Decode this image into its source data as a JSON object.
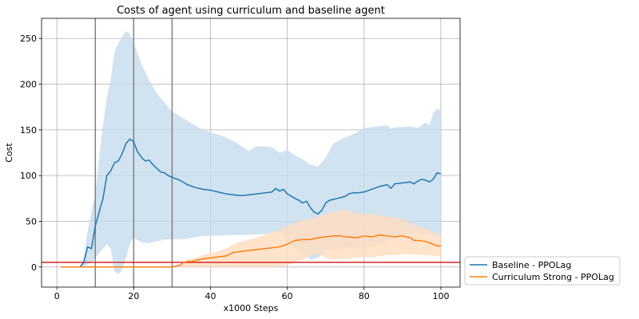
{
  "chart_data": {
    "type": "line",
    "title": "Costs of agent using curriculum and baseline agent",
    "xlabel": "x1000 Steps",
    "ylabel": "Cost",
    "xlim": [
      -4,
      105
    ],
    "ylim": [
      -22,
      272
    ],
    "xticks": [
      0,
      20,
      40,
      60,
      80,
      100
    ],
    "yticks": [
      0,
      50,
      100,
      150,
      200,
      250
    ],
    "grid": true,
    "legend_position": "outside-lower-right",
    "threshold": 5,
    "vlines": [
      10,
      20,
      30
    ],
    "series": [
      {
        "name": "Baseline - PPOLag",
        "color": "#1f77b4",
        "band_color": "#c6dcec",
        "points": [
          [
            1,
            0
          ],
          [
            6,
            0
          ],
          [
            7,
            5
          ],
          [
            8,
            22
          ],
          [
            9,
            20
          ],
          [
            10,
            45
          ],
          [
            11,
            60
          ],
          [
            12,
            75
          ],
          [
            13,
            100
          ],
          [
            14,
            105
          ],
          [
            15,
            114
          ],
          [
            16,
            116
          ],
          [
            17,
            124
          ],
          [
            18,
            135
          ],
          [
            19,
            140
          ],
          [
            20,
            137
          ],
          [
            21,
            126
          ],
          [
            22,
            120
          ],
          [
            23,
            116
          ],
          [
            24,
            117
          ],
          [
            25,
            112
          ],
          [
            26,
            108
          ],
          [
            27,
            104
          ],
          [
            28,
            103
          ],
          [
            29,
            100
          ],
          [
            30,
            98
          ],
          [
            32,
            95
          ],
          [
            34,
            90
          ],
          [
            36,
            87
          ],
          [
            38,
            85
          ],
          [
            40,
            84
          ],
          [
            42,
            82
          ],
          [
            44,
            80
          ],
          [
            46,
            79
          ],
          [
            48,
            78
          ],
          [
            50,
            79
          ],
          [
            52,
            80
          ],
          [
            54,
            81
          ],
          [
            56,
            82
          ],
          [
            57,
            86
          ],
          [
            58,
            83
          ],
          [
            59,
            85
          ],
          [
            60,
            80
          ],
          [
            62,
            75
          ],
          [
            63,
            73
          ],
          [
            64,
            70
          ],
          [
            65,
            72
          ],
          [
            66,
            65
          ],
          [
            67,
            60
          ],
          [
            68,
            58
          ],
          [
            69,
            62
          ],
          [
            70,
            70
          ],
          [
            71,
            73
          ],
          [
            72,
            74
          ],
          [
            73,
            75
          ],
          [
            74,
            76
          ],
          [
            75,
            77
          ],
          [
            76,
            80
          ],
          [
            77,
            81
          ],
          [
            78,
            81
          ],
          [
            80,
            82
          ],
          [
            82,
            85
          ],
          [
            84,
            88
          ],
          [
            86,
            90
          ],
          [
            87,
            86
          ],
          [
            88,
            91
          ],
          [
            90,
            92
          ],
          [
            92,
            93
          ],
          [
            93,
            91
          ],
          [
            94,
            94
          ],
          [
            95,
            96
          ],
          [
            96,
            95
          ],
          [
            97,
            93
          ],
          [
            98,
            96
          ],
          [
            99,
            103
          ],
          [
            100,
            102
          ]
        ],
        "upper": [
          [
            1,
            0
          ],
          [
            6,
            0
          ],
          [
            7,
            10
          ],
          [
            8,
            40
          ],
          [
            9,
            60
          ],
          [
            10,
            80
          ],
          [
            11,
            120
          ],
          [
            12,
            155
          ],
          [
            13,
            185
          ],
          [
            14,
            205
          ],
          [
            15,
            235
          ],
          [
            16,
            245
          ],
          [
            17,
            252
          ],
          [
            18,
            258
          ],
          [
            19,
            255
          ],
          [
            20,
            245
          ],
          [
            22,
            222
          ],
          [
            24,
            205
          ],
          [
            26,
            190
          ],
          [
            28,
            180
          ],
          [
            30,
            170
          ],
          [
            34,
            160
          ],
          [
            38,
            150
          ],
          [
            42,
            145
          ],
          [
            46,
            138
          ],
          [
            50,
            127
          ],
          [
            52,
            132
          ],
          [
            54,
            132
          ],
          [
            56,
            131
          ],
          [
            58,
            125
          ],
          [
            60,
            128
          ],
          [
            62,
            122
          ],
          [
            64,
            118
          ],
          [
            66,
            112
          ],
          [
            68,
            110
          ],
          [
            70,
            120
          ],
          [
            72,
            135
          ],
          [
            74,
            140
          ],
          [
            76,
            143
          ],
          [
            78,
            147
          ],
          [
            80,
            152
          ],
          [
            82,
            153
          ],
          [
            84,
            154
          ],
          [
            86,
            155
          ],
          [
            87,
            151
          ],
          [
            88,
            153
          ],
          [
            90,
            153
          ],
          [
            92,
            154
          ],
          [
            94,
            152
          ],
          [
            96,
            158
          ],
          [
            97,
            155
          ],
          [
            98,
            168
          ],
          [
            99,
            173
          ],
          [
            100,
            172
          ]
        ],
        "lower": [
          [
            1,
            0
          ],
          [
            6,
            0
          ],
          [
            7,
            0
          ],
          [
            8,
            3
          ],
          [
            9,
            5
          ],
          [
            10,
            10
          ],
          [
            11,
            15
          ],
          [
            12,
            20
          ],
          [
            13,
            25
          ],
          [
            14,
            20
          ],
          [
            15,
            -5
          ],
          [
            16,
            -8
          ],
          [
            17,
            -3
          ],
          [
            18,
            10
          ],
          [
            19,
            25
          ],
          [
            20,
            32
          ],
          [
            22,
            27
          ],
          [
            24,
            26
          ],
          [
            26,
            28
          ],
          [
            28,
            30
          ],
          [
            30,
            30
          ],
          [
            34,
            31
          ],
          [
            38,
            34
          ],
          [
            42,
            34
          ],
          [
            46,
            35
          ],
          [
            50,
            35
          ],
          [
            54,
            36
          ],
          [
            56,
            37
          ],
          [
            58,
            40
          ],
          [
            60,
            30
          ],
          [
            62,
            20
          ],
          [
            64,
            15
          ],
          [
            66,
            8
          ],
          [
            68,
            10
          ],
          [
            70,
            18
          ],
          [
            72,
            20
          ],
          [
            74,
            20
          ],
          [
            76,
            22
          ],
          [
            78,
            20
          ],
          [
            80,
            20
          ],
          [
            82,
            22
          ],
          [
            84,
            25
          ],
          [
            86,
            28
          ],
          [
            88,
            32
          ],
          [
            90,
            35
          ],
          [
            92,
            37
          ],
          [
            94,
            38
          ],
          [
            96,
            36
          ],
          [
            98,
            35
          ],
          [
            100,
            33
          ]
        ]
      },
      {
        "name": "Curriculum Strong - PPOLag",
        "color": "#ff7f0e",
        "band_color": "#ffdcbe",
        "points": [
          [
            1,
            0
          ],
          [
            25,
            0
          ],
          [
            30,
            0
          ],
          [
            31,
            1
          ],
          [
            32,
            2
          ],
          [
            33,
            5
          ],
          [
            34,
            6
          ],
          [
            35,
            6
          ],
          [
            36,
            7
          ],
          [
            38,
            9
          ],
          [
            40,
            10
          ],
          [
            42,
            11
          ],
          [
            44,
            12
          ],
          [
            45,
            14
          ],
          [
            46,
            16
          ],
          [
            48,
            17
          ],
          [
            50,
            18
          ],
          [
            52,
            19
          ],
          [
            54,
            20
          ],
          [
            56,
            21
          ],
          [
            58,
            22
          ],
          [
            60,
            25
          ],
          [
            62,
            29
          ],
          [
            64,
            30
          ],
          [
            66,
            30
          ],
          [
            68,
            32
          ],
          [
            70,
            33
          ],
          [
            72,
            34
          ],
          [
            74,
            34
          ],
          [
            75,
            33
          ],
          [
            76,
            33
          ],
          [
            78,
            32
          ],
          [
            80,
            34
          ],
          [
            82,
            33
          ],
          [
            84,
            35
          ],
          [
            86,
            34
          ],
          [
            88,
            33
          ],
          [
            90,
            34
          ],
          [
            92,
            32
          ],
          [
            93,
            29
          ],
          [
            94,
            29
          ],
          [
            96,
            28
          ],
          [
            98,
            25
          ],
          [
            99,
            23
          ],
          [
            100,
            23
          ]
        ],
        "upper": [
          [
            1,
            0
          ],
          [
            25,
            0
          ],
          [
            30,
            0
          ],
          [
            32,
            3
          ],
          [
            34,
            8
          ],
          [
            36,
            10
          ],
          [
            38,
            13
          ],
          [
            40,
            15
          ],
          [
            42,
            17
          ],
          [
            44,
            20
          ],
          [
            46,
            25
          ],
          [
            48,
            28
          ],
          [
            50,
            30
          ],
          [
            52,
            32
          ],
          [
            54,
            35
          ],
          [
            56,
            38
          ],
          [
            58,
            40
          ],
          [
            60,
            45
          ],
          [
            62,
            48
          ],
          [
            64,
            52
          ],
          [
            66,
            52
          ],
          [
            68,
            55
          ],
          [
            70,
            58
          ],
          [
            72,
            60
          ],
          [
            74,
            62
          ],
          [
            76,
            62
          ],
          [
            78,
            58
          ],
          [
            80,
            58
          ],
          [
            82,
            58
          ],
          [
            84,
            57
          ],
          [
            86,
            55
          ],
          [
            88,
            54
          ],
          [
            90,
            52
          ],
          [
            92,
            48
          ],
          [
            94,
            44
          ],
          [
            96,
            42
          ],
          [
            98,
            38
          ],
          [
            100,
            35
          ]
        ],
        "lower": [
          [
            1,
            0
          ],
          [
            25,
            0
          ],
          [
            30,
            0
          ],
          [
            32,
            0
          ],
          [
            34,
            0
          ],
          [
            36,
            0
          ],
          [
            40,
            0
          ],
          [
            44,
            0
          ],
          [
            46,
            0
          ],
          [
            48,
            0
          ],
          [
            50,
            0
          ],
          [
            52,
            0
          ],
          [
            54,
            0
          ],
          [
            56,
            0
          ],
          [
            58,
            0
          ],
          [
            60,
            2
          ],
          [
            62,
            5
          ],
          [
            64,
            8
          ],
          [
            66,
            12
          ],
          [
            68,
            15
          ],
          [
            70,
            10
          ],
          [
            72,
            8
          ],
          [
            74,
            9
          ],
          [
            76,
            9
          ],
          [
            78,
            10
          ],
          [
            80,
            11
          ],
          [
            82,
            10
          ],
          [
            84,
            12
          ],
          [
            86,
            13
          ],
          [
            88,
            13
          ],
          [
            90,
            14
          ],
          [
            92,
            14
          ],
          [
            94,
            13
          ],
          [
            96,
            13
          ],
          [
            98,
            12
          ],
          [
            100,
            12
          ]
        ]
      }
    ],
    "threshold_color": "#d62728",
    "vline_color": "#808080"
  }
}
